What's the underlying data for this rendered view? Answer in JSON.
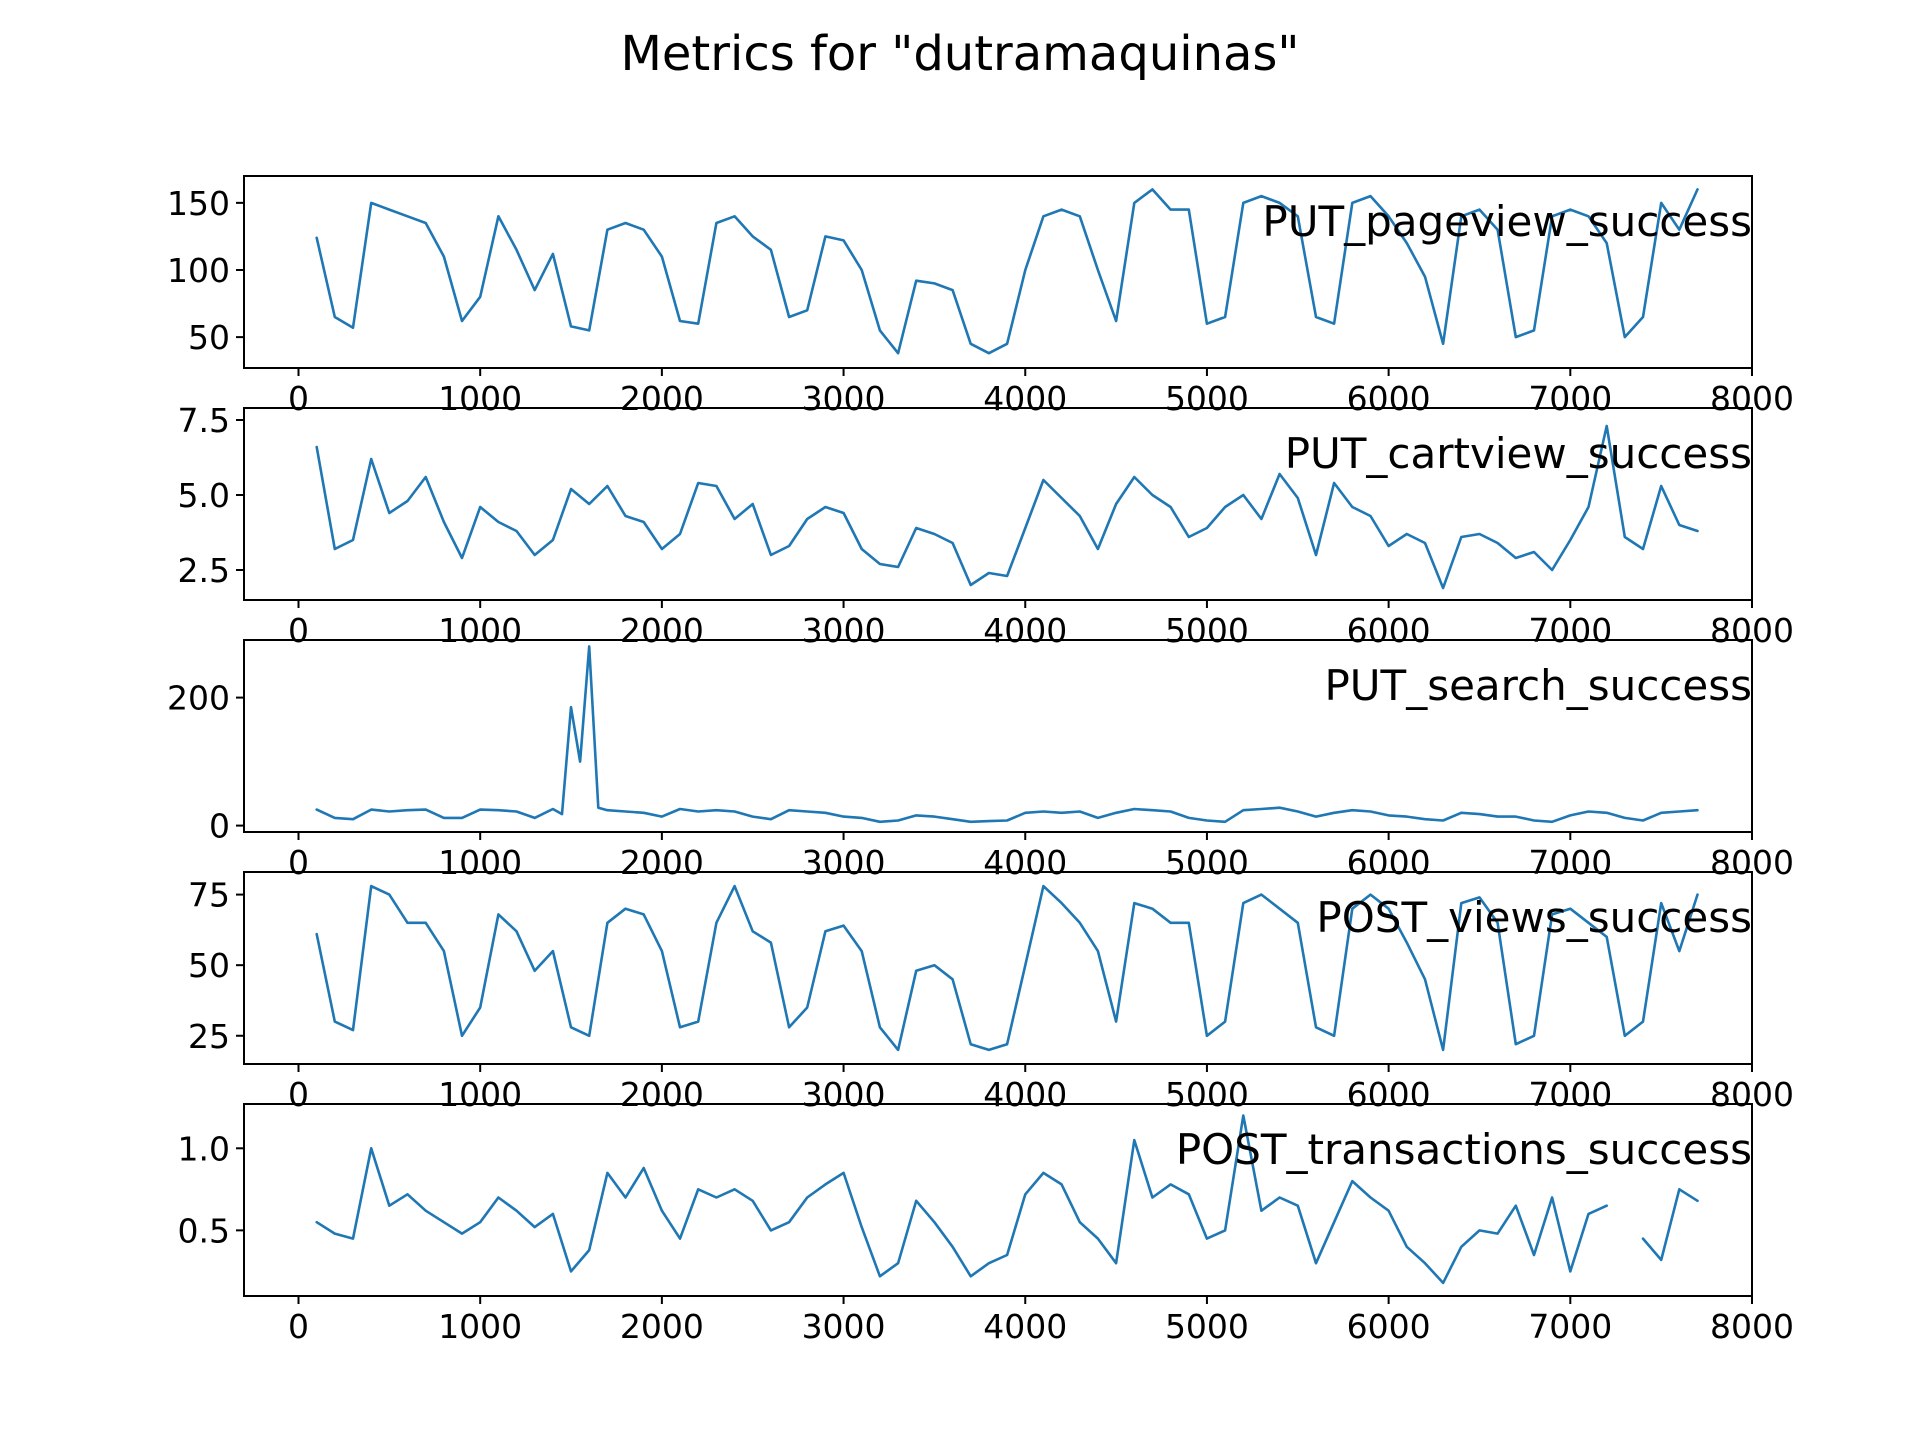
{
  "chart_data": {
    "type": "line",
    "title": "Metrics for \"dutramaquinas\"",
    "line_color": "#1f77b4",
    "grid": false,
    "xlim": [
      -300,
      8000
    ],
    "xticks": [
      0,
      1000,
      2000,
      3000,
      4000,
      5000,
      6000,
      7000,
      8000
    ],
    "panels": [
      {
        "label": "PUT_pageview_success",
        "ylim": [
          27,
          170
        ],
        "yticks": [
          50,
          100,
          150
        ],
        "ytick_labels": [
          "50",
          "100",
          "150"
        ],
        "x": [
          100,
          200,
          300,
          400,
          500,
          600,
          700,
          800,
          900,
          1000,
          1100,
          1200,
          1300,
          1400,
          1500,
          1600,
          1700,
          1800,
          1900,
          2000,
          2100,
          2200,
          2300,
          2400,
          2500,
          2600,
          2700,
          2800,
          2900,
          3000,
          3100,
          3200,
          3300,
          3400,
          3500,
          3600,
          3700,
          3800,
          3900,
          4000,
          4100,
          4200,
          4300,
          4400,
          4500,
          4600,
          4700,
          4800,
          4900,
          5000,
          5100,
          5200,
          5300,
          5400,
          5500,
          5600,
          5700,
          5800,
          5900,
          6000,
          6100,
          6200,
          6300,
          6400,
          6500,
          6600,
          6700,
          6800,
          6900,
          7000,
          7100,
          7200,
          7300,
          7400,
          7500,
          7600,
          7700
        ],
        "y": [
          124,
          65,
          57,
          150,
          145,
          140,
          135,
          110,
          62,
          80,
          140,
          115,
          85,
          112,
          58,
          55,
          130,
          135,
          130,
          110,
          62,
          60,
          135,
          140,
          125,
          115,
          65,
          70,
          125,
          122,
          100,
          55,
          38,
          92,
          90,
          85,
          45,
          38,
          45,
          100,
          140,
          145,
          140,
          100,
          62,
          150,
          160,
          145,
          145,
          60,
          65,
          150,
          155,
          150,
          140,
          65,
          60,
          150,
          155,
          140,
          120,
          95,
          45,
          140,
          145,
          130,
          50,
          55,
          140,
          145,
          140,
          120,
          50,
          65,
          150,
          130,
          160
        ]
      },
      {
        "label": "PUT_cartview_success",
        "ylim": [
          1.5,
          7.9
        ],
        "yticks": [
          2.5,
          5.0,
          7.5
        ],
        "ytick_labels": [
          "2.5",
          "5.0",
          "7.5"
        ],
        "x": [
          100,
          200,
          300,
          400,
          500,
          600,
          700,
          800,
          900,
          1000,
          1100,
          1200,
          1300,
          1400,
          1500,
          1600,
          1700,
          1800,
          1900,
          2000,
          2100,
          2200,
          2300,
          2400,
          2500,
          2600,
          2700,
          2800,
          2900,
          3000,
          3100,
          3200,
          3300,
          3400,
          3500,
          3600,
          3700,
          3800,
          3900,
          4000,
          4100,
          4200,
          4300,
          4400,
          4500,
          4600,
          4700,
          4800,
          4900,
          5000,
          5100,
          5200,
          5300,
          5400,
          5500,
          5600,
          5700,
          5800,
          5900,
          6000,
          6100,
          6200,
          6300,
          6400,
          6500,
          6600,
          6700,
          6800,
          6900,
          7000,
          7100,
          7200,
          7300,
          7400,
          7500,
          7600,
          7700
        ],
        "y": [
          6.6,
          3.2,
          3.5,
          6.2,
          4.4,
          4.8,
          5.6,
          4.1,
          2.9,
          4.6,
          4.1,
          3.8,
          3.0,
          3.5,
          5.2,
          4.7,
          5.3,
          4.3,
          4.1,
          3.2,
          3.7,
          5.4,
          5.3,
          4.2,
          4.7,
          3.0,
          3.3,
          4.2,
          4.6,
          4.4,
          3.2,
          2.7,
          2.6,
          3.9,
          3.7,
          3.4,
          2.0,
          2.4,
          2.3,
          3.9,
          5.5,
          4.9,
          4.3,
          3.2,
          4.7,
          5.6,
          5.0,
          4.6,
          3.6,
          3.9,
          4.6,
          5.0,
          4.2,
          5.7,
          4.9,
          3.0,
          5.4,
          4.6,
          4.3,
          3.3,
          3.7,
          3.4,
          1.9,
          3.6,
          3.7,
          3.4,
          2.9,
          3.1,
          2.5,
          3.5,
          4.6,
          7.3,
          3.6,
          3.2,
          5.3,
          4.0,
          3.8
        ]
      },
      {
        "label": "PUT_search_success",
        "ylim": [
          -10,
          290
        ],
        "yticks": [
          0,
          200
        ],
        "ytick_labels": [
          "0",
          "200"
        ],
        "x": [
          100,
          200,
          300,
          400,
          500,
          600,
          700,
          800,
          900,
          1000,
          1100,
          1200,
          1300,
          1400,
          1450,
          1500,
          1550,
          1600,
          1650,
          1700,
          1800,
          1900,
          2000,
          2100,
          2200,
          2300,
          2400,
          2500,
          2600,
          2700,
          2800,
          2900,
          3000,
          3100,
          3200,
          3300,
          3400,
          3500,
          3600,
          3700,
          3800,
          3900,
          4000,
          4100,
          4200,
          4300,
          4400,
          4500,
          4600,
          4700,
          4800,
          4900,
          5000,
          5100,
          5200,
          5300,
          5400,
          5500,
          5600,
          5700,
          5800,
          5900,
          6000,
          6100,
          6200,
          6300,
          6400,
          6500,
          6600,
          6700,
          6800,
          6900,
          7000,
          7100,
          7200,
          7300,
          7400,
          7500,
          7600,
          7700
        ],
        "y": [
          25,
          12,
          10,
          25,
          22,
          24,
          25,
          12,
          12,
          25,
          24,
          22,
          12,
          26,
          18,
          185,
          100,
          280,
          28,
          24,
          22,
          20,
          14,
          26,
          22,
          24,
          22,
          14,
          10,
          24,
          22,
          20,
          14,
          12,
          6,
          8,
          16,
          14,
          10,
          6,
          7,
          8,
          20,
          22,
          20,
          22,
          12,
          20,
          26,
          24,
          22,
          12,
          8,
          6,
          24,
          26,
          28,
          22,
          14,
          20,
          24,
          22,
          16,
          14,
          10,
          8,
          20,
          18,
          14,
          14,
          8,
          6,
          16,
          22,
          20,
          12,
          8,
          20,
          22,
          24
        ]
      },
      {
        "label": "POST_views_success",
        "ylim": [
          15,
          83
        ],
        "yticks": [
          25,
          50,
          75
        ],
        "ytick_labels": [
          "25",
          "50",
          "75"
        ],
        "x": [
          100,
          200,
          300,
          400,
          500,
          600,
          700,
          800,
          900,
          1000,
          1100,
          1200,
          1300,
          1400,
          1500,
          1600,
          1700,
          1800,
          1900,
          2000,
          2100,
          2200,
          2300,
          2400,
          2500,
          2600,
          2700,
          2800,
          2900,
          3000,
          3100,
          3200,
          3300,
          3400,
          3500,
          3600,
          3700,
          3800,
          3900,
          4000,
          4100,
          4200,
          4300,
          4400,
          4500,
          4600,
          4700,
          4800,
          4900,
          5000,
          5100,
          5200,
          5300,
          5400,
          5500,
          5600,
          5700,
          5800,
          5900,
          6000,
          6100,
          6200,
          6300,
          6400,
          6500,
          6600,
          6700,
          6800,
          6900,
          7000,
          7100,
          7200,
          7300,
          7400,
          7500,
          7600,
          7700
        ],
        "y": [
          61,
          30,
          27,
          78,
          75,
          65,
          65,
          55,
          25,
          35,
          68,
          62,
          48,
          55,
          28,
          25,
          65,
          70,
          68,
          55,
          28,
          30,
          65,
          78,
          62,
          58,
          28,
          35,
          62,
          64,
          55,
          28,
          20,
          48,
          50,
          45,
          22,
          20,
          22,
          50,
          78,
          72,
          65,
          55,
          30,
          72,
          70,
          65,
          65,
          25,
          30,
          72,
          75,
          70,
          65,
          28,
          25,
          70,
          75,
          70,
          58,
          45,
          20,
          72,
          74,
          65,
          22,
          25,
          68,
          70,
          65,
          60,
          25,
          30,
          72,
          55,
          75
        ]
      },
      {
        "label": "POST_transactions_success",
        "ylim": [
          0.1,
          1.27
        ],
        "yticks": [
          0.5,
          1.0
        ],
        "ytick_labels": [
          "0.5",
          "1.0"
        ],
        "x": [
          100,
          200,
          300,
          400,
          500,
          600,
          700,
          800,
          900,
          1000,
          1100,
          1200,
          1300,
          1400,
          1500,
          1600,
          1700,
          1800,
          1900,
          2000,
          2100,
          2200,
          2300,
          2400,
          2500,
          2600,
          2700,
          2800,
          2900,
          3000,
          3100,
          3200,
          3300,
          3400,
          3500,
          3600,
          3700,
          3800,
          3900,
          4000,
          4100,
          4200,
          4300,
          4400,
          4500,
          4600,
          4700,
          4800,
          4900,
          5000,
          5100,
          5200,
          5300,
          5400,
          5500,
          5600,
          5700,
          5800,
          5900,
          6000,
          6100,
          6200,
          6300,
          6400,
          6500,
          6600,
          6700,
          6800,
          6900,
          7000,
          7100,
          7200,
          7300,
          7400,
          7500,
          7600,
          7700
        ],
        "y": [
          0.55,
          0.48,
          0.45,
          1.0,
          0.65,
          0.72,
          0.62,
          0.55,
          0.48,
          0.55,
          0.7,
          0.62,
          0.52,
          0.6,
          0.25,
          0.38,
          0.85,
          0.7,
          0.88,
          0.62,
          0.45,
          0.75,
          0.7,
          0.75,
          0.68,
          0.5,
          0.55,
          0.7,
          0.78,
          0.85,
          0.52,
          0.22,
          0.3,
          0.68,
          0.55,
          0.4,
          0.22,
          0.3,
          0.35,
          0.72,
          0.85,
          0.78,
          0.55,
          0.45,
          0.3,
          1.05,
          0.7,
          0.78,
          0.72,
          0.45,
          0.5,
          1.2,
          0.62,
          0.7,
          0.65,
          0.3,
          0.55,
          0.8,
          0.7,
          0.62,
          0.4,
          0.3,
          0.18,
          0.4,
          0.5,
          0.48,
          0.65,
          0.35,
          0.7,
          0.25,
          0.6,
          0.65,
          null,
          0.45,
          0.32,
          0.75,
          0.68
        ]
      }
    ]
  }
}
